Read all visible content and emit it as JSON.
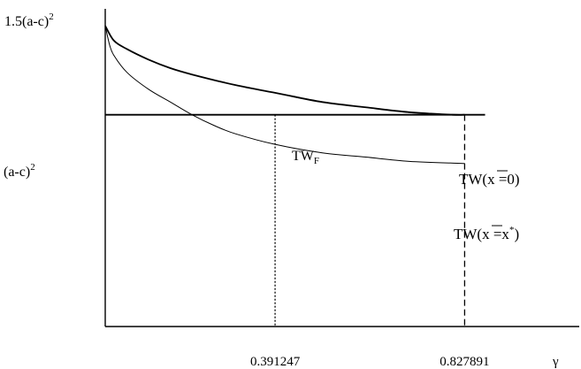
{
  "chart_data": {
    "type": "line",
    "xlabel": "γ",
    "ylabel": "",
    "xlim": [
      0,
      1.1
    ],
    "ylim": [
      0,
      1.5
    ],
    "y_tick_labels": [
      {
        "y": 1.5,
        "label": "1.5(a-c)",
        "sup": "2"
      },
      {
        "y": 1.0,
        "label": "(a-c)",
        "sup": "2"
      }
    ],
    "x_tick_labels": [
      {
        "x": 0.391247,
        "label": "0.391247",
        "style": "dotted"
      },
      {
        "x": 0.827891,
        "label": "0.827891",
        "style": "dashed"
      }
    ],
    "series": [
      {
        "name": "TW_F",
        "label_main": "TW",
        "label_sub": "F",
        "weight": "thick",
        "x": [
          0.0,
          0.02,
          0.05,
          0.1,
          0.15,
          0.2,
          0.3,
          0.4,
          0.5,
          0.6,
          0.7,
          0.8,
          0.827891
        ],
        "y": [
          1.42,
          1.35,
          1.31,
          1.26,
          1.22,
          1.19,
          1.14,
          1.1,
          1.06,
          1.035,
          1.012,
          1.0,
          1.0
        ]
      },
      {
        "name": "TW(x̄=x*)",
        "label_main": "TW(",
        "label_xbar": "x",
        "label_mid": " =x",
        "label_sup": "*",
        "label_end": ")",
        "weight": "thin",
        "x": [
          0.0,
          0.01,
          0.02,
          0.05,
          0.1,
          0.15,
          0.2,
          0.25,
          0.3,
          0.391247,
          0.5,
          0.6,
          0.7,
          0.827891
        ],
        "y": [
          1.42,
          1.33,
          1.28,
          1.2,
          1.12,
          1.06,
          1.0,
          0.95,
          0.91,
          0.86,
          0.82,
          0.8,
          0.78,
          0.77
        ]
      },
      {
        "name": "TW(x̄=0)",
        "label_main": "TW(",
        "label_xbar": "x",
        "label_mid": " =0)",
        "weight": "thick",
        "x": [
          0.0,
          0.875
        ],
        "y": [
          1.0,
          1.0
        ]
      }
    ],
    "vlines": [
      {
        "x": 0.391247,
        "y_top": 1.0,
        "style": "dotted"
      },
      {
        "x": 0.827891,
        "y_top": 1.0,
        "style": "dashed"
      }
    ]
  }
}
